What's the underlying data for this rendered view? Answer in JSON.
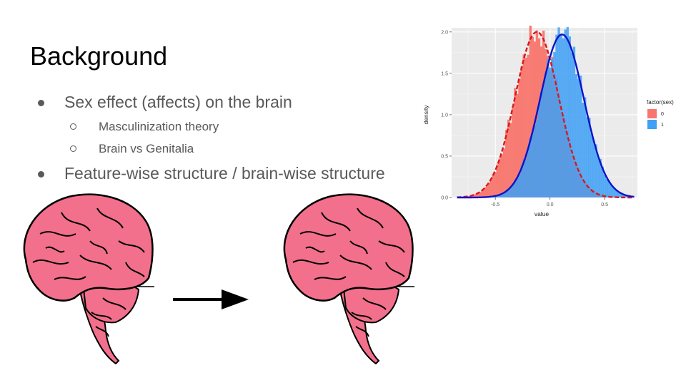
{
  "slide": {
    "title": "Background",
    "bullets": [
      {
        "text": "Sex effect (affects) on the brain",
        "sub": [
          "Masculinization theory",
          "Brain vs Genitalia"
        ]
      },
      {
        "text": "Feature-wise structure / brain-wise structure",
        "sub": []
      }
    ]
  },
  "icons": [
    "brain-illustration",
    "right-arrow",
    "brain-illustration"
  ],
  "colors": {
    "series0": "#F8766D",
    "series1": "#3FA0F5",
    "curve0": "#d7191c",
    "curve1": "#0b14c8",
    "panel": "#ebebeb",
    "text": "#595959"
  },
  "chart_data": {
    "type": "bar",
    "title": "",
    "xlabel": "value",
    "ylabel": "density",
    "xlim": [
      -0.9,
      0.8
    ],
    "ylim": [
      0,
      2.05
    ],
    "xticks": [
      "-0.5",
      "0.0",
      "0.5"
    ],
    "yticks": [
      "0.0",
      "0.5",
      "1.0",
      "1.5",
      "2.0"
    ],
    "legend": {
      "title": "factor(sex)",
      "position": "right",
      "entries": [
        "0",
        "1"
      ]
    },
    "grid": true,
    "series": [
      {
        "name": "0",
        "type": "histogram-with-density",
        "mean": -0.12,
        "sd": 0.2,
        "peak_density": 2.0
      },
      {
        "name": "1",
        "type": "histogram-with-density",
        "mean": 0.11,
        "sd": 0.2,
        "peak_density": 1.97
      }
    ]
  }
}
